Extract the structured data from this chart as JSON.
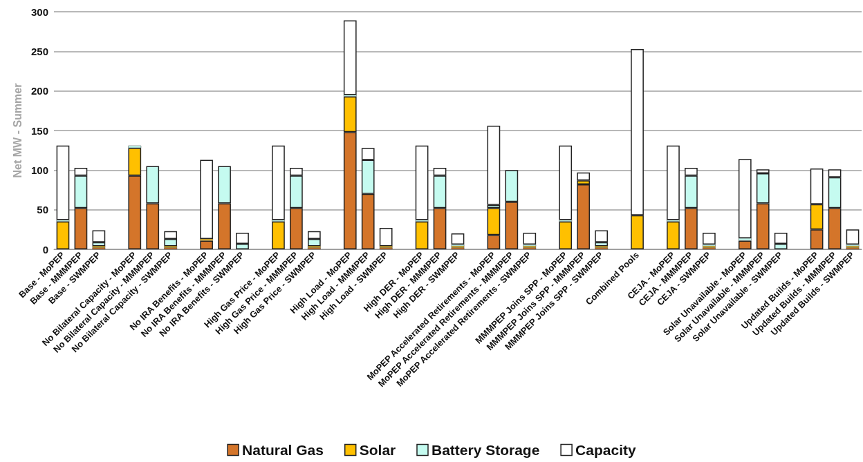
{
  "chart_data": {
    "type": "bar",
    "stacked": true,
    "ylabel": "Net MW - Summer",
    "categories": [
      "Base - MoPEP",
      "Base - MMMPEP",
      "Base - SWMPEP",
      null,
      "No Bilateral Capacity - MoPEP",
      "No Bilateral Capacity - MMMPEP",
      "No Bilateral Capacity - SWMPEP",
      null,
      "No IRA Benefits - MoPEP",
      "No IRA Benefits - MMMPEP",
      "No IRA Benefits - SWMPEP",
      null,
      "High Gas Price - MoPEP",
      "High Gas Price - MMMPEP",
      "High Gas Price - SWMPEP",
      null,
      "High Load - MoPEP",
      "High Load - MMMPEP",
      "High Load - SWMPEP",
      null,
      "High DER - MoPEP",
      "High DER - MMMPEP",
      "High DER - SWMPEP",
      null,
      "MoPEP Accelerated Retirements - MoPEP",
      "MoPEP Accelerated Retirements - MMMPEP",
      "MoPEP Accelerated Retirements - SWMPEP",
      null,
      "MMMPEP Joins SPP - MoPEP",
      "MMMPEP Joins SPP - MMMPEP",
      "MMMPEP Joins SPP - SWMPEP",
      null,
      "Combined Pools",
      null,
      "CEJA - MoPEP",
      "CEJA - MMMPEP",
      "CEJA - SWMPEP",
      null,
      "Solar Unavailable - MoPEP",
      "Solar Unavailable - MMMPEP",
      "Solar Unavailable - SWMPEP",
      null,
      "Updated Builds - MoPEP",
      "Updated Builds - MMMPEP",
      "Updated Builds - SWMPEP"
    ],
    "series": [
      {
        "name": "Natural Gas",
        "color": "#d4752a",
        "values": [
          null,
          52,
          2,
          null,
          93,
          58,
          2,
          null,
          11,
          58,
          null,
          null,
          null,
          52,
          2,
          null,
          148,
          70,
          2,
          null,
          null,
          52,
          2,
          null,
          18,
          60,
          2,
          null,
          null,
          82,
          2,
          null,
          null,
          null,
          null,
          52,
          2,
          null,
          11,
          58,
          null,
          null,
          25,
          52,
          2
        ]
      },
      {
        "name": "Solar",
        "color": "#ffc000",
        "values": [
          35,
          null,
          2,
          null,
          35,
          null,
          2,
          null,
          2,
          null,
          null,
          null,
          35,
          null,
          2,
          null,
          45,
          null,
          2,
          null,
          35,
          null,
          2,
          null,
          34,
          null,
          2,
          null,
          35,
          5,
          2,
          null,
          43,
          null,
          35,
          null,
          2,
          null,
          null,
          null,
          null,
          null,
          32,
          null,
          2
        ]
      },
      {
        "name": "Battery Storage",
        "color": "#c5fbf0",
        "values": [
          2,
          41,
          5,
          null,
          3,
          47,
          9,
          null,
          null,
          47,
          7,
          null,
          2,
          41,
          9,
          null,
          2,
          43,
          null,
          null,
          2,
          41,
          2,
          null,
          4,
          40,
          2,
          null,
          2,
          null,
          5,
          null,
          null,
          null,
          2,
          41,
          2,
          null,
          3,
          38,
          7,
          null,
          null,
          39,
          2
        ]
      },
      {
        "name": "Capacity",
        "color": "#ffffff",
        "values": [
          94,
          10,
          15,
          null,
          null,
          null,
          10,
          null,
          100,
          null,
          14,
          null,
          94,
          10,
          10,
          null,
          94,
          15,
          23,
          null,
          94,
          10,
          14,
          null,
          100,
          null,
          15,
          null,
          94,
          10,
          15,
          null,
          210,
          null,
          94,
          10,
          15,
          null,
          100,
          5,
          14,
          null,
          45,
          10,
          19
        ]
      }
    ],
    "ylim": [
      0,
      300
    ],
    "yticks": [
      0,
      50,
      100,
      150,
      200,
      250,
      300
    ],
    "grid": "y",
    "legend": "bottom"
  }
}
